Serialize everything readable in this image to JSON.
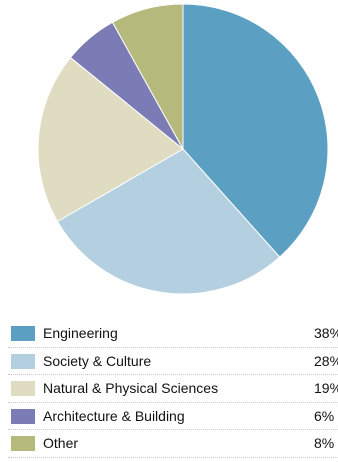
{
  "chart_data": {
    "type": "pie",
    "title": "",
    "slices": [
      {
        "label": "Engineering",
        "value": 38,
        "value_text": "38%",
        "color": "#5b9fc2"
      },
      {
        "label": "Society & Culture",
        "value": 28,
        "value_text": "28%",
        "color": "#b3cfe0"
      },
      {
        "label": "Natural & Physical Sciences",
        "value": 19,
        "value_text": "19%",
        "color": "#e0dcc2"
      },
      {
        "label": "Architecture & Building",
        "value": 6,
        "value_text": "6%",
        "color": "#7b7bb5"
      },
      {
        "label": "Other",
        "value": 8,
        "value_text": "8%",
        "color": "#b5ba7c"
      }
    ],
    "legend_position": "bottom"
  }
}
